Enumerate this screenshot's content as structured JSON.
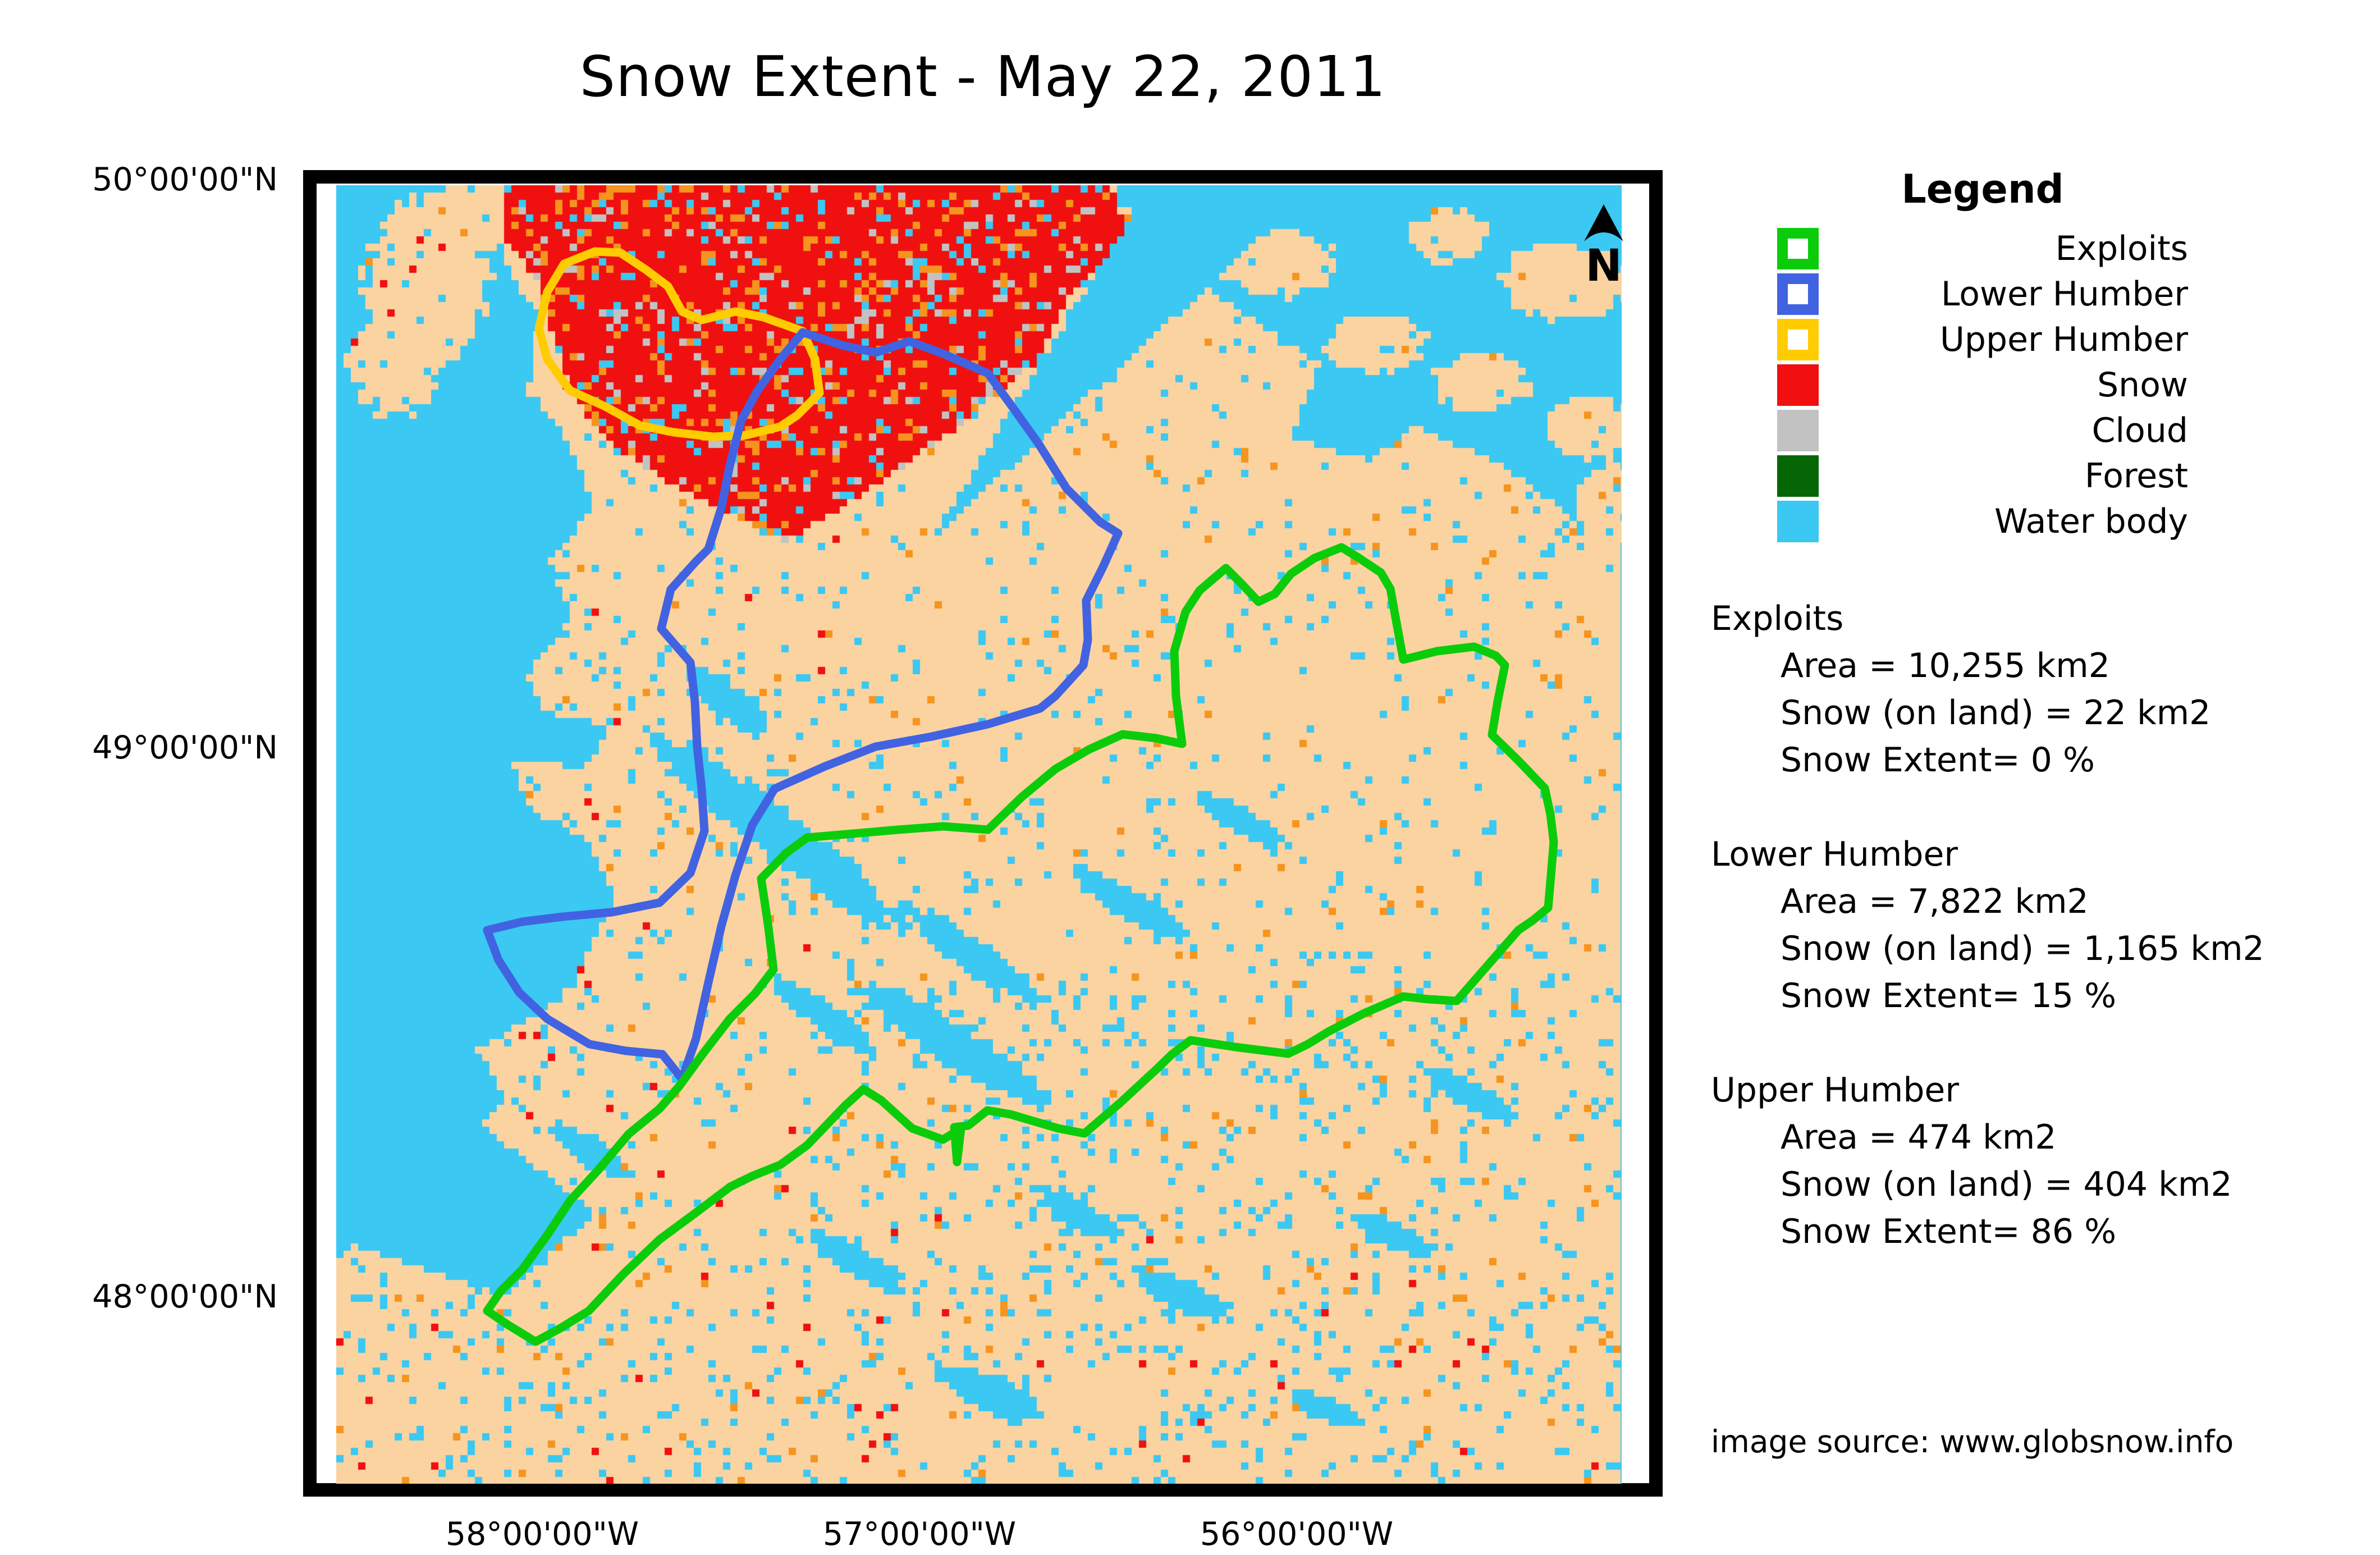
{
  "title": "Snow Extent - May 22, 2011",
  "map": {
    "lat_labels": [
      "50°00'00\"N",
      "49°00'00\"N",
      "48°00'00\"N"
    ],
    "lon_labels": [
      "58°00'00\"W",
      "57°00'00\"W",
      "56°00'00\"W"
    ],
    "north_label": "N"
  },
  "legend": {
    "title": "Legend",
    "items": [
      {
        "label": "Exploits",
        "color": "#0BCC0B",
        "type": "outline"
      },
      {
        "label": "Lower Humber",
        "color": "#4163E1",
        "type": "outline"
      },
      {
        "label": "Upper Humber",
        "color": "#FFCC00",
        "type": "outline"
      },
      {
        "label": "Snow",
        "color": "#F01010",
        "type": "fill"
      },
      {
        "label": "Cloud",
        "color": "#C2C2C2",
        "type": "fill"
      },
      {
        "label": "Forest",
        "color": "#056605",
        "type": "fill"
      },
      {
        "label": "Water body",
        "color": "#3BC8F2",
        "type": "fill"
      }
    ]
  },
  "stats": [
    {
      "name": "Exploits",
      "lines": [
        "Area = 10,255 km2",
        "Snow (on land) = 22 km2",
        "Snow Extent= 0 %"
      ]
    },
    {
      "name": "Lower Humber",
      "lines": [
        "Area = 7,822 km2",
        "Snow (on land) = 1,165 km2",
        "Snow Extent= 15 %"
      ]
    },
    {
      "name": "Upper Humber",
      "lines": [
        "Area = 474 km2",
        "Snow (on land) = 404 km2",
        "Snow Extent= 86 %"
      ]
    }
  ],
  "source": "image source: www.globsnow.info",
  "colors": {
    "water": "#3BC8F2",
    "land": "#FBD3A0",
    "snow": "#F01010",
    "patchy": "#F5941E",
    "cloud": "#C2C2C2",
    "forest": "#056605",
    "exploits": "#0BCC0B",
    "lower_humber": "#4163E1",
    "upper_humber": "#FFCC00",
    "frame": "#000000"
  }
}
